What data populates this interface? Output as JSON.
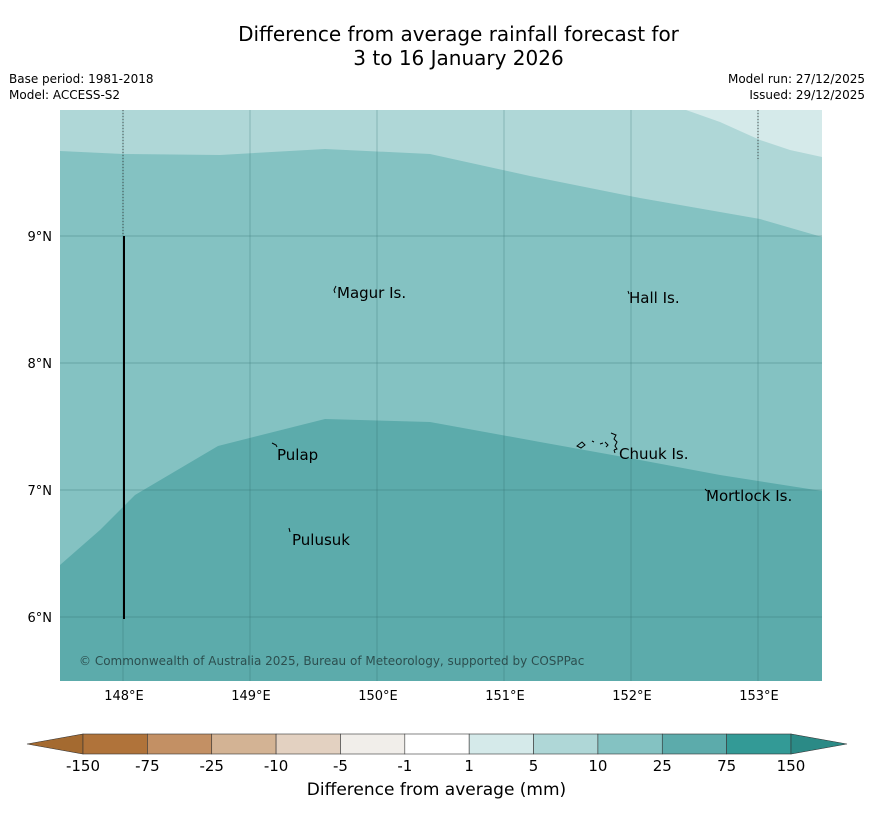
{
  "title": {
    "line1": "Difference from average rainfall forecast for",
    "line2": "3 to 16 January 2026"
  },
  "meta": {
    "base_period": "Base period: 1981-2018",
    "model": "Model: ACCESS-S2",
    "model_run": "Model run: 27/12/2025",
    "issued": "Issued: 29/12/2025"
  },
  "map": {
    "lat_labels": [
      "9°N",
      "8°N",
      "7°N",
      "6°N"
    ],
    "lon_labels": [
      "148°E",
      "149°E",
      "150°E",
      "151°E",
      "152°E",
      "153°E"
    ],
    "places": [
      {
        "name": "Magur Is.",
        "lon": 149.67,
        "lat": 8.55
      },
      {
        "name": "Hall Is.",
        "lon": 151.98,
        "lat": 8.52
      },
      {
        "name": "Pulap",
        "lon": 149.2,
        "lat": 7.28
      },
      {
        "name": "Chuuk Is.",
        "lon": 151.87,
        "lat": 7.28
      },
      {
        "name": "Mortlock Is.",
        "lon": 152.6,
        "lat": 6.96
      },
      {
        "name": "Pulusuk",
        "lon": 149.32,
        "lat": 6.63
      }
    ],
    "copyright": "© Commonwealth of Australia 2025, Bureau of Meteorology, supported by COSPPac",
    "zone_colors": {
      "5-10": "#afd7d7",
      "1-5": "#d5eaea",
      "10-25": "#84c2c2",
      "25-75": "#5cabab"
    }
  },
  "colorbar": {
    "title": "Difference from average (mm)",
    "ticks": [
      "-150",
      "-75",
      "-25",
      "-10",
      "-5",
      "-1",
      "1",
      "5",
      "10",
      "25",
      "75",
      "150"
    ],
    "colors": [
      "#a46a30",
      "#b0733a",
      "#c39064",
      "#d3b394",
      "#e3d1c1",
      "#f1eeea",
      "#ffffff",
      "#d5eaea",
      "#afd7d7",
      "#84c2c2",
      "#5cabab",
      "#339a96",
      "#2b8a86"
    ]
  }
}
